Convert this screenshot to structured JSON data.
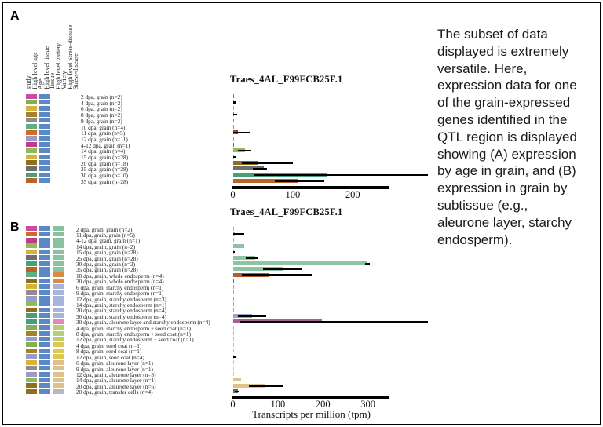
{
  "figure": {
    "panel_a_label": "A",
    "panel_b_label": "B",
    "annotation_headers": [
      "study",
      "High level age",
      "Age",
      "High level tissue",
      "Tissue",
      "High level variety",
      "Variety",
      "High level Stress-disease",
      "Stress-disease"
    ],
    "caption_lines": [
      "The subset of data",
      "displayed is extremely",
      "versatile. Here,",
      "expression data for one",
      "of the grain-expressed",
      "genes identified in the",
      "QTL region is displayed",
      "showing  (A) expression",
      "by age in grain, and (B)",
      "expression in grain by",
      "subtissue (e.g.,",
      "aleurone layer, starchy",
      "endosperm)."
    ]
  },
  "colors": {
    "tissue_grain": "#5b87c5",
    "age_strip": {
      "2": "#c84da0",
      "4": "#83b14e",
      "6": "#d4b240",
      "8": "#a5812b",
      "9": "#8c8c8c",
      "10": "#5fae85",
      "11": "#cf6b24",
      "12": "#9a9bc9",
      "4-12": "#c13a92",
      "14": "#8fbd55",
      "15": "#d4b240",
      "20": "#8f6f1e",
      "25": "#6e6e6e",
      "30": "#45a077",
      "35": "#bc6127"
    },
    "age_bar_overrides": {
      "11": "#9e4527"
    },
    "sub_strip": {
      "grain": "#8ac2a0",
      "whole endosperm": "#d98a45",
      "starchy endosperm": "#a9b4dc",
      "aleurone layer and starchy endosperm": "#e089b8",
      "starchy endosperm + seed coat": "#b9cc76",
      "seed coat": "#ddc94f",
      "aleurone layer": "#dec08d",
      "transfer cells": "#b8b8b8"
    },
    "sub_bar": {
      "grain": "#8ec4a2",
      "whole endosperm": "#b15f2e",
      "starchy endosperm": "#97a3d4",
      "aleurone layer and starchy endosperm": "#a4638f",
      "starchy endosperm + seed coat": "#cfc455",
      "seed coat": "#ddc94f",
      "aleurone layer": "#dfc18c",
      "transfer cells": "#666666"
    }
  },
  "chart_data": [
    {
      "panel": "A",
      "type": "bar",
      "orientation": "horizontal",
      "title": "Traes_4AL_F99FCB25F.1",
      "xlabel": "",
      "unit": "tpm",
      "xlim": [
        0,
        260
      ],
      "xticks": [
        0,
        100,
        200
      ],
      "color_by": "age",
      "rows": [
        {
          "label": "2 dpa, grain (n=2)",
          "age": "2",
          "value": 1,
          "err": null
        },
        {
          "label": "4 dpa, grain (n=2)",
          "age": "4",
          "value": 2,
          "err": [
            0,
            5
          ]
        },
        {
          "label": "6 dpa, grain (n=2)",
          "age": "6",
          "value": 0.5,
          "err": null
        },
        {
          "label": "8 dpa, grain (n=2)",
          "age": "8",
          "value": 2,
          "err": [
            0,
            7
          ]
        },
        {
          "label": "9 dpa, grain (n=2)",
          "age": "9",
          "value": 1,
          "err": null
        },
        {
          "label": "10 dpa, grain (n=4)",
          "age": "10",
          "value": 0.5,
          "err": null
        },
        {
          "label": "11 dpa, grain (n=5)",
          "age": "11",
          "value": 8,
          "err": [
            0,
            28
          ]
        },
        {
          "label": "12 dpa, grain (n=11)",
          "age": "12",
          "value": 1,
          "err": null
        },
        {
          "label": "4-12 dpa, grain (n=1)",
          "age": "4-12",
          "value": 1.5,
          "err": null
        },
        {
          "label": "14 dpa, grain (n=4)",
          "age": "14",
          "value": 20,
          "err": [
            8,
            31
          ]
        },
        {
          "label": "15 dpa, grain (n=28)",
          "age": "15",
          "value": 2,
          "err": [
            0,
            5
          ]
        },
        {
          "label": "20 dpa, grain (n=18)",
          "age": "20",
          "value": 43,
          "err": [
            15,
            100
          ]
        },
        {
          "label": "25 dpa, grain (n=28)",
          "age": "25",
          "value": 52,
          "err": [
            33,
            57
          ]
        },
        {
          "label": "30 dpa, grain (n=10)",
          "age": "30",
          "value": 156,
          "err": [
            35,
            326
          ]
        },
        {
          "label": "35 dpa, grain (n=28)",
          "age": "35",
          "value": 110,
          "err": [
            70,
            153
          ]
        }
      ]
    },
    {
      "panel": "B",
      "type": "bar",
      "orientation": "horizontal",
      "title": "Traes_4AL_F99FCB25F.1",
      "xlabel": "Transcripts per million (tpm)",
      "unit": "tpm",
      "xlim": [
        0,
        346
      ],
      "xticks": [
        0,
        100,
        200,
        300
      ],
      "color_by": "subtissue",
      "rows": [
        {
          "label": "2 dpa, grain, grain (n=2)",
          "age": "2",
          "sub": "grain",
          "value": 1,
          "err": null
        },
        {
          "label": "11 dpa, grain, grain (n=5)",
          "age": "11",
          "sub": "grain",
          "value": 5,
          "err": [
            0,
            26
          ]
        },
        {
          "label": "4-12 dpa, grain, grain (n=1)",
          "age": "4-12",
          "sub": "grain",
          "value": 1,
          "err": null
        },
        {
          "label": "14 dpa, grain, grain (n=2)",
          "age": "14",
          "sub": "grain",
          "value": 26,
          "err": null
        },
        {
          "label": "15 dpa, grain, grain (n=28)",
          "age": "15",
          "sub": "grain",
          "value": 2,
          "err": [
            0,
            5
          ]
        },
        {
          "label": "25 dpa, grain, grain (n=28)",
          "age": "25",
          "sub": "grain",
          "value": 49,
          "err": [
            29,
            57
          ]
        },
        {
          "label": "30 dpa, grain, grain (n=2)",
          "age": "30",
          "sub": "grain",
          "value": 297,
          "err": [
            293,
            305
          ]
        },
        {
          "label": "35 dpa, grain, grain (n=28)",
          "age": "35",
          "sub": "grain",
          "value": 110,
          "err": [
            67,
            154
          ]
        },
        {
          "label": "10 dpa, grain, whole endosperm (n=4)",
          "age": "10",
          "sub": "whole endosperm",
          "value": 81,
          "err": [
            20,
            175
          ]
        },
        {
          "label": "20 dpa, grain, whole endosperm (n=4)",
          "age": "20",
          "sub": "whole endosperm",
          "value": 1,
          "err": null
        },
        {
          "label": "6 dpa, grain, starchy endosperm (n=1)",
          "age": "6",
          "sub": "starchy endosperm",
          "value": 1,
          "err": null
        },
        {
          "label": "9 dpa, grain, starchy endosperm (n=1)",
          "age": "9",
          "sub": "starchy endosperm",
          "value": 0.5,
          "err": null
        },
        {
          "label": "12 dpa, grain, starchy endosperm (n=3)",
          "age": "12",
          "sub": "starchy endosperm",
          "value": 1,
          "err": null
        },
        {
          "label": "14 dpa, grain, starchy endosperm (n=1)",
          "age": "14",
          "sub": "starchy endosperm",
          "value": 0.5,
          "err": null
        },
        {
          "label": "20 dpa, grain, starchy endosperm (n=4)",
          "age": "20",
          "sub": "starchy endosperm",
          "value": 2,
          "err": null
        },
        {
          "label": "30 dpa, grain, starchy endosperm (n=4)",
          "age": "30",
          "sub": "starchy endosperm",
          "value": 42,
          "err": [
            11,
            74
          ]
        },
        {
          "label": "30 dpa, grain, aleurone layer and starchy endosperm (n=4)",
          "age": "30",
          "sub": "aleurone layer and starchy endosperm",
          "value": 198,
          "err": [
            16,
            433
          ]
        },
        {
          "label": "4 dpa, grain, starchy endosperm + seed coat (n=1)",
          "age": "4",
          "sub": "starchy endosperm + seed coat",
          "value": 2,
          "err": null
        },
        {
          "label": "8 dpa, grain, starchy endosperm + seed coat (n=1)",
          "age": "8",
          "sub": "starchy endosperm + seed coat",
          "value": 2,
          "err": null
        },
        {
          "label": "12 dpa, grain, starchy endosperm + seed coat (n=1)",
          "age": "12",
          "sub": "starchy endosperm + seed coat",
          "value": 2,
          "err": null
        },
        {
          "label": "4 dpa, grain, seed coat (n=1)",
          "age": "4",
          "sub": "seed coat",
          "value": 2,
          "err": null
        },
        {
          "label": "8 dpa, grain, seed coat (n=1)",
          "age": "8",
          "sub": "seed coat",
          "value": 1,
          "err": null
        },
        {
          "label": "12 dpa, grain, seed coat (n=4)",
          "age": "12",
          "sub": "seed coat",
          "value": 3,
          "err": [
            0,
            6
          ]
        },
        {
          "label": "6 dpa, grain, aleurone layer (n=1)",
          "age": "6",
          "sub": "aleurone layer",
          "value": 1,
          "err": null
        },
        {
          "label": "9 dpa, grain, aleurone layer (n=1)",
          "age": "9",
          "sub": "aleurone layer",
          "value": 1,
          "err": null
        },
        {
          "label": "12 dpa, grain, aleurone layer (n=3)",
          "age": "12",
          "sub": "aleurone layer",
          "value": 0.5,
          "err": null
        },
        {
          "label": "14 dpa, grain, aleurone layer (n=1)",
          "age": "14",
          "sub": "aleurone layer",
          "value": 18,
          "err": null
        },
        {
          "label": "20 dpa, grain, aleurone layer (n=6)",
          "age": "20",
          "sub": "aleurone layer",
          "value": 73,
          "err": [
            35,
            110
          ]
        },
        {
          "label": "20 dpa, grain, transfer cells (n=4)",
          "age": "20",
          "sub": "transfer cells",
          "value": 11,
          "err": [
            4,
            15
          ]
        }
      ]
    }
  ]
}
